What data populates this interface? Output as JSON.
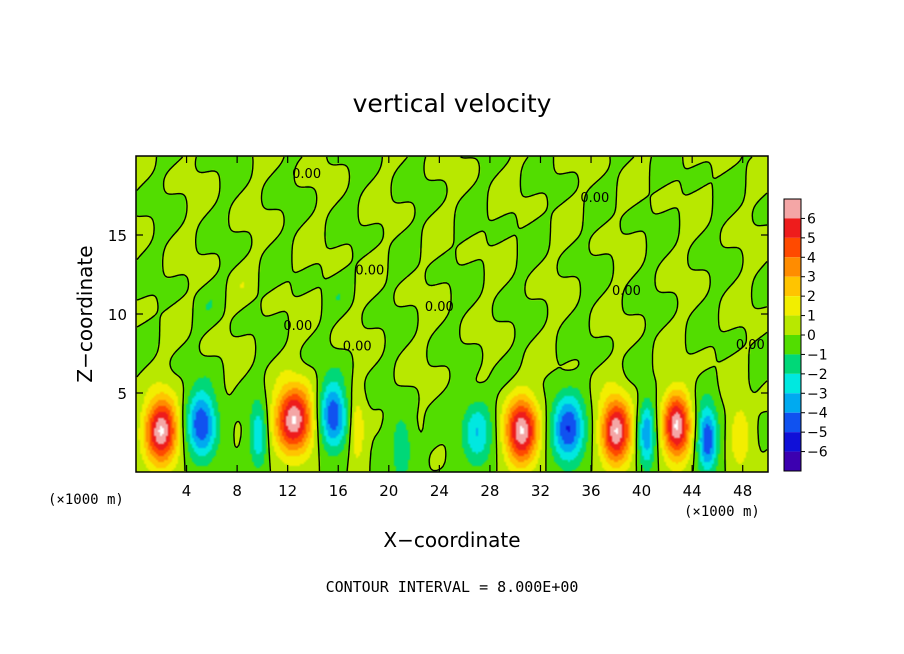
{
  "chart_data": {
    "type": "heatmap",
    "title": "vertical velocity",
    "xlabel": "X−coordinate",
    "ylabel": "Z−coordinate",
    "x_unit_left": "(×1000 m)",
    "x_unit_right": "(×1000 m)",
    "footer": "CONTOUR INTERVAL = 8.000E+00",
    "xlim": [
      0,
      50
    ],
    "ylim": [
      0,
      20
    ],
    "xticks": [
      4,
      8,
      12,
      16,
      20,
      24,
      28,
      32,
      36,
      40,
      44,
      48
    ],
    "yticks": [
      5,
      10,
      15
    ],
    "xtick_labels": [
      "4",
      "8",
      "12",
      "16",
      "20",
      "24",
      "28",
      "32",
      "36",
      "40",
      "44",
      "48"
    ],
    "ytick_labels": [
      "5",
      "10",
      "15"
    ],
    "contour_labels": [
      {
        "text": "0.00",
        "x": 13.5,
        "y": 18.6
      },
      {
        "text": "0.00",
        "x": 36.3,
        "y": 17.1
      },
      {
        "text": "0.00",
        "x": 18.5,
        "y": 12.5
      },
      {
        "text": "0.00",
        "x": 24.0,
        "y": 10.2
      },
      {
        "text": "0.00",
        "x": 12.8,
        "y": 9.0
      },
      {
        "text": "0.00",
        "x": 17.5,
        "y": 7.7
      },
      {
        "text": "0.00",
        "x": 38.8,
        "y": 11.2
      },
      {
        "text": "0.00",
        "x": 48.6,
        "y": 7.8
      }
    ],
    "colorbar": {
      "levels": [
        "6",
        "5",
        "4",
        "3",
        "2",
        "1",
        "0",
        "−1",
        "−2",
        "−3",
        "−4",
        "−5",
        "−6"
      ],
      "colors": [
        "#f4a6a6",
        "#ee1c1c",
        "#ff4a00",
        "#ff8c00",
        "#ffc400",
        "#f2ee00",
        "#b8e800",
        "#52dd00",
        "#00d878",
        "#00e8e0",
        "#00aaf0",
        "#1052f0",
        "#1010d8",
        "#3c00b0"
      ]
    },
    "cells": [
      {
        "x": 2.0,
        "z": 2.6,
        "w": 2.6,
        "sign": 1,
        "amp": 7
      },
      {
        "x": 5.2,
        "z": 3.0,
        "w": 2.4,
        "sign": -1,
        "amp": 5
      },
      {
        "x": 9.7,
        "z": 2.4,
        "w": 1.4,
        "sign": -1,
        "amp": 3
      },
      {
        "x": 12.5,
        "z": 3.3,
        "w": 3.0,
        "sign": 1,
        "amp": 7
      },
      {
        "x": 15.6,
        "z": 3.6,
        "w": 2.2,
        "sign": -1,
        "amp": 5
      },
      {
        "x": 17.5,
        "z": 2.6,
        "w": 1.2,
        "sign": 1,
        "amp": 2
      },
      {
        "x": 21.0,
        "z": 1.5,
        "w": 1.6,
        "sign": -1,
        "amp": 2
      },
      {
        "x": 27.0,
        "z": 2.5,
        "w": 2.4,
        "sign": -1,
        "amp": 3
      },
      {
        "x": 30.5,
        "z": 2.6,
        "w": 2.6,
        "sign": 1,
        "amp": 7
      },
      {
        "x": 34.2,
        "z": 2.7,
        "w": 2.6,
        "sign": -1,
        "amp": 5
      },
      {
        "x": 38.0,
        "z": 2.6,
        "w": 2.4,
        "sign": 1,
        "amp": 7
      },
      {
        "x": 40.4,
        "z": 2.4,
        "w": 1.4,
        "sign": -1,
        "amp": 4
      },
      {
        "x": 42.8,
        "z": 2.9,
        "w": 2.2,
        "sign": 1,
        "amp": 7
      },
      {
        "x": 45.2,
        "z": 2.1,
        "w": 1.6,
        "sign": -1,
        "amp": 5
      },
      {
        "x": 47.8,
        "z": 2.3,
        "w": 1.6,
        "sign": 1,
        "amp": 2
      }
    ]
  }
}
